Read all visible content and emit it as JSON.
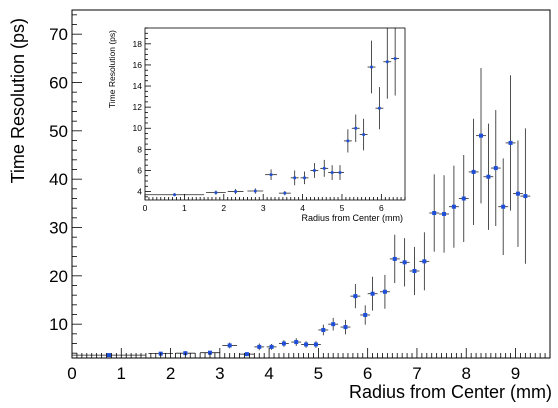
{
  "chart_data": [
    {
      "type": "scatter",
      "xlabel": "Radius from Center (mm)",
      "ylabel": "Time Resolution (ps)",
      "xlim": [
        0,
        9.7
      ],
      "ylim": [
        3,
        75
      ],
      "x_ticks": [
        "0",
        "1",
        "2",
        "3",
        "4",
        "5",
        "6",
        "7",
        "8",
        "9"
      ],
      "y_ticks": [
        "10",
        "20",
        "30",
        "40",
        "50",
        "60",
        "70"
      ],
      "x_tick_values": [
        0,
        1,
        2,
        3,
        4,
        5,
        6,
        7,
        8,
        9
      ],
      "y_tick_values": [
        10,
        20,
        30,
        40,
        50,
        60,
        70
      ],
      "grid": false,
      "marker_color": "#1f4fd8",
      "errorbar_color": "#222222",
      "series": [
        {
          "values": [
            {
              "x": 0.75,
              "y": 3.6,
              "xerr": 0.75,
              "yerr": 0.2
            },
            {
              "x": 1.8,
              "y": 3.9,
              "xerr": 0.25,
              "yerr": 0.25
            },
            {
              "x": 2.3,
              "y": 4.0,
              "xerr": 0.2,
              "yerr": 0.25
            },
            {
              "x": 2.8,
              "y": 4.1,
              "xerr": 0.2,
              "yerr": 0.3
            },
            {
              "x": 3.2,
              "y": 5.6,
              "xerr": 0.15,
              "yerr": 0.6
            },
            {
              "x": 3.55,
              "y": 3.8,
              "xerr": 0.15,
              "yerr": 0.3
            },
            {
              "x": 3.8,
              "y": 5.3,
              "xerr": 0.1,
              "yerr": 0.7
            },
            {
              "x": 4.05,
              "y": 5.3,
              "xerr": 0.1,
              "yerr": 0.6
            },
            {
              "x": 4.3,
              "y": 6.0,
              "xerr": 0.1,
              "yerr": 0.7
            },
            {
              "x": 4.55,
              "y": 6.3,
              "xerr": 0.1,
              "yerr": 0.8
            },
            {
              "x": 4.75,
              "y": 5.8,
              "xerr": 0.1,
              "yerr": 0.7
            },
            {
              "x": 4.95,
              "y": 5.8,
              "xerr": 0.1,
              "yerr": 0.7
            },
            {
              "x": 5.1,
              "y": 8.8,
              "xerr": 0.1,
              "yerr": 1.1
            },
            {
              "x": 5.3,
              "y": 10.0,
              "xerr": 0.1,
              "yerr": 1.3
            },
            {
              "x": 5.55,
              "y": 9.4,
              "xerr": 0.1,
              "yerr": 1.5
            },
            {
              "x": 5.75,
              "y": 15.8,
              "xerr": 0.1,
              "yerr": 2.5
            },
            {
              "x": 5.95,
              "y": 11.9,
              "xerr": 0.1,
              "yerr": 2.0
            },
            {
              "x": 6.1,
              "y": 16.3,
              "xerr": 0.1,
              "yerr": 3.5
            },
            {
              "x": 6.35,
              "y": 16.7,
              "xerr": 0.1,
              "yerr": 3.5
            },
            {
              "x": 6.55,
              "y": 23.5,
              "xerr": 0.1,
              "yerr": 5.0
            },
            {
              "x": 6.75,
              "y": 22.8,
              "xerr": 0.1,
              "yerr": 5.0
            },
            {
              "x": 6.95,
              "y": 21.0,
              "xerr": 0.1,
              "yerr": 5.0
            },
            {
              "x": 7.15,
              "y": 23.0,
              "xerr": 0.1,
              "yerr": 6.0
            },
            {
              "x": 7.35,
              "y": 33.0,
              "xerr": 0.1,
              "yerr": 8.0
            },
            {
              "x": 7.55,
              "y": 32.8,
              "xerr": 0.1,
              "yerr": 8.0
            },
            {
              "x": 7.75,
              "y": 34.3,
              "xerr": 0.1,
              "yerr": 8.5
            },
            {
              "x": 7.95,
              "y": 36.0,
              "xerr": 0.1,
              "yerr": 9.0
            },
            {
              "x": 8.15,
              "y": 41.5,
              "xerr": 0.1,
              "yerr": 11.0
            },
            {
              "x": 8.3,
              "y": 49.0,
              "xerr": 0.1,
              "yerr": 14.0
            },
            {
              "x": 8.45,
              "y": 40.5,
              "xerr": 0.1,
              "yerr": 11.0
            },
            {
              "x": 8.6,
              "y": 42.3,
              "xerr": 0.1,
              "yerr": 12.0
            },
            {
              "x": 8.75,
              "y": 34.3,
              "xerr": 0.1,
              "yerr": 10.0
            },
            {
              "x": 8.9,
              "y": 47.5,
              "xerr": 0.1,
              "yerr": 14.0
            },
            {
              "x": 9.05,
              "y": 37.0,
              "xerr": 0.1,
              "yerr": 11.0
            },
            {
              "x": 9.2,
              "y": 36.5,
              "xerr": 0.1,
              "yerr": 14.0
            }
          ]
        }
      ]
    },
    {
      "type": "scatter",
      "inset": true,
      "xlabel": "Radius from Center (mm)",
      "ylabel": "Time Resolution (ps)",
      "xlim": [
        0,
        6.6
      ],
      "ylim": [
        3.2,
        19.5
      ],
      "x_ticks": [
        "0",
        "1",
        "2",
        "3",
        "4",
        "5",
        "6"
      ],
      "y_ticks": [
        "4",
        "6",
        "8",
        "10",
        "12",
        "14",
        "16",
        "18"
      ],
      "x_tick_values": [
        0,
        1,
        2,
        3,
        4,
        5,
        6
      ],
      "y_tick_values": [
        4,
        6,
        8,
        10,
        12,
        14,
        16,
        18
      ],
      "grid": false,
      "marker_color": "#1f4fd8",
      "errorbar_color": "#222222",
      "series": [
        {
          "values": [
            {
              "x": 0.75,
              "y": 3.7,
              "xerr": 0.75,
              "yerr": 0.15
            },
            {
              "x": 1.8,
              "y": 3.9,
              "xerr": 0.25,
              "yerr": 0.2
            },
            {
              "x": 2.3,
              "y": 4.0,
              "xerr": 0.2,
              "yerr": 0.25
            },
            {
              "x": 2.8,
              "y": 4.05,
              "xerr": 0.2,
              "yerr": 0.25
            },
            {
              "x": 3.2,
              "y": 5.6,
              "xerr": 0.15,
              "yerr": 0.5
            },
            {
              "x": 3.55,
              "y": 3.85,
              "xerr": 0.15,
              "yerr": 0.2
            },
            {
              "x": 3.8,
              "y": 5.3,
              "xerr": 0.1,
              "yerr": 0.7
            },
            {
              "x": 4.05,
              "y": 5.3,
              "xerr": 0.1,
              "yerr": 0.6
            },
            {
              "x": 4.3,
              "y": 6.0,
              "xerr": 0.1,
              "yerr": 0.7
            },
            {
              "x": 4.55,
              "y": 6.2,
              "xerr": 0.1,
              "yerr": 0.8
            },
            {
              "x": 4.75,
              "y": 5.8,
              "xerr": 0.1,
              "yerr": 0.7
            },
            {
              "x": 4.95,
              "y": 5.8,
              "xerr": 0.1,
              "yerr": 0.7
            },
            {
              "x": 5.15,
              "y": 8.8,
              "xerr": 0.1,
              "yerr": 1.1
            },
            {
              "x": 5.35,
              "y": 10.0,
              "xerr": 0.1,
              "yerr": 1.3
            },
            {
              "x": 5.55,
              "y": 9.4,
              "xerr": 0.1,
              "yerr": 1.5
            },
            {
              "x": 5.75,
              "y": 15.8,
              "xerr": 0.1,
              "yerr": 2.5
            },
            {
              "x": 5.95,
              "y": 11.9,
              "xerr": 0.1,
              "yerr": 2.0
            },
            {
              "x": 6.15,
              "y": 16.3,
              "xerr": 0.1,
              "yerr": 3.5
            },
            {
              "x": 6.35,
              "y": 16.6,
              "xerr": 0.1,
              "yerr": 3.5
            }
          ]
        }
      ]
    }
  ]
}
